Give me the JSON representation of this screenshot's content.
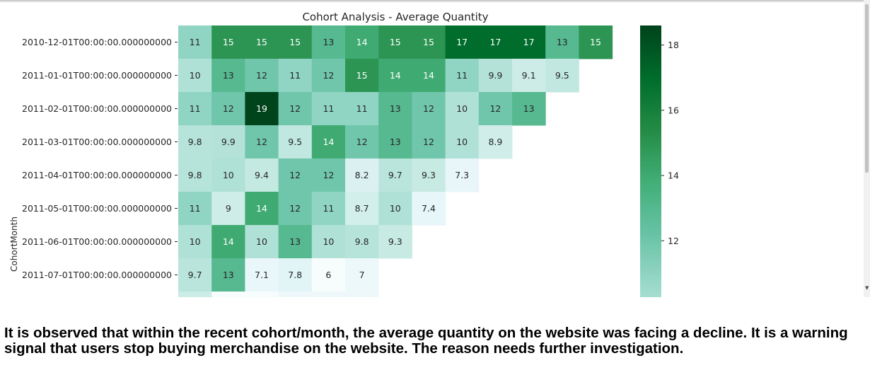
{
  "chart_data": {
    "type": "heatmap",
    "title": "Cohort Analysis - Average Quantity",
    "ylabel": "CohortMonth",
    "xlabel": "",
    "rows": [
      "2010-12-01T00:00:00.000000000",
      "2011-01-01T00:00:00.000000000",
      "2011-02-01T00:00:00.000000000",
      "2011-03-01T00:00:00.000000000",
      "2011-04-01T00:00:00.000000000",
      "2011-05-01T00:00:00.000000000",
      "2011-06-01T00:00:00.000000000",
      "2011-07-01T00:00:00.000000000"
    ],
    "cell_labels": [
      [
        "11",
        "15",
        "15",
        "15",
        "13",
        "14",
        "15",
        "15",
        "17",
        "17",
        "17",
        "13",
        "15"
      ],
      [
        "10",
        "13",
        "12",
        "11",
        "12",
        "15",
        "14",
        "14",
        "11",
        "9.9",
        "9.1",
        "9.5"
      ],
      [
        "11",
        "12",
        "19",
        "12",
        "11",
        "11",
        "13",
        "12",
        "10",
        "12",
        "13"
      ],
      [
        "9.8",
        "9.9",
        "12",
        "9.5",
        "14",
        "12",
        "13",
        "12",
        "10",
        "8.9"
      ],
      [
        "9.8",
        "10",
        "9.4",
        "12",
        "12",
        "8.2",
        "9.7",
        "9.3",
        "7.3"
      ],
      [
        "11",
        "9",
        "14",
        "12",
        "11",
        "8.7",
        "10",
        "7.4"
      ],
      [
        "10",
        "14",
        "10",
        "13",
        "10",
        "9.8",
        "9.3"
      ],
      [
        "9.7",
        "13",
        "7.1",
        "7.8",
        "6",
        "7"
      ]
    ],
    "values": [
      [
        11,
        15,
        15,
        15,
        13,
        14,
        15,
        15,
        17,
        17,
        17,
        13,
        15
      ],
      [
        10,
        13,
        12,
        11,
        12,
        15,
        14,
        14,
        11,
        9.9,
        9.1,
        9.5
      ],
      [
        11,
        12,
        19,
        12,
        11,
        11,
        13,
        12,
        10,
        12,
        13
      ],
      [
        9.8,
        9.9,
        12,
        9.5,
        14,
        12,
        13,
        12,
        10,
        8.9
      ],
      [
        9.8,
        10,
        9.4,
        12,
        12,
        8.2,
        9.7,
        9.3,
        7.3
      ],
      [
        11,
        9,
        14,
        12,
        11,
        8.7,
        10,
        7.4
      ],
      [
        10,
        14,
        10,
        13,
        10,
        9.8,
        9.3
      ],
      [
        9.7,
        13,
        7.1,
        7.8,
        6,
        7
      ]
    ],
    "colorbar": {
      "ticks": [
        18,
        16,
        14,
        12
      ],
      "tick_labels": [
        "18",
        "16",
        "14",
        "12"
      ],
      "range": [
        6,
        18.6
      ],
      "colors": [
        "#f7fcfd",
        "#e5f5f9",
        "#ccece6",
        "#99d8c9",
        "#66c2a4",
        "#41ae76",
        "#238b45",
        "#006d2c",
        "#00441b"
      ]
    },
    "grid": false,
    "legend": "right"
  },
  "caption": "It is observed that within the recent cohort/month, the average quantity on the website was facing a decline. It is a warning signal that users stop buying merchandise on the website. The reason needs further investigation."
}
